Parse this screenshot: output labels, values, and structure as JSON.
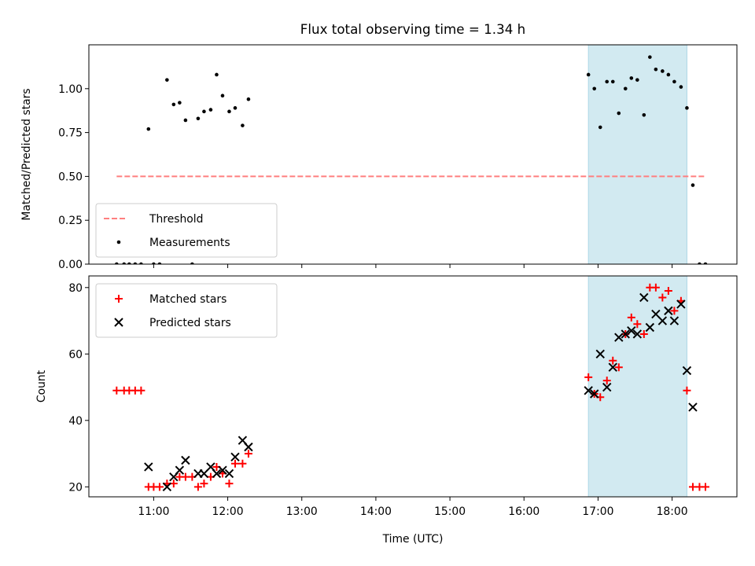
{
  "chart_data": {
    "title": "Flux total observing time = 1.34 h",
    "xlabel": "Time (UTC)",
    "x_ticks": [
      {
        "h": 11,
        "label": "11:00"
      },
      {
        "h": 12,
        "label": "12:00"
      },
      {
        "h": 13,
        "label": "13:00"
      },
      {
        "h": 14,
        "label": "14:00"
      },
      {
        "h": 15,
        "label": "15:00"
      },
      {
        "h": 16,
        "label": "16:00"
      },
      {
        "h": 17,
        "label": "17:00"
      },
      {
        "h": 18,
        "label": "18:00"
      }
    ],
    "xlim": [
      10.125,
      18.875
    ],
    "highlight_span": [
      16.87,
      18.2
    ],
    "highlight_color": "#add8e6",
    "panels": [
      {
        "type": "scatter",
        "ylabel": "Matched/Predicted stars",
        "ylim": [
          0,
          1.25
        ],
        "y_ticks": [
          {
            "v": 0,
            "label": "0.00"
          },
          {
            "v": 0.25,
            "label": "0.25"
          },
          {
            "v": 0.5,
            "label": "0.50"
          },
          {
            "v": 0.75,
            "label": "0.75"
          },
          {
            "v": 1.0,
            "label": "1.00"
          }
        ],
        "threshold": {
          "name": "Threshold",
          "value": 0.5,
          "x": [
            10.5,
            18.45
          ],
          "color": "#ff7f7f"
        },
        "series": [
          {
            "name": "Measurements",
            "color": "#000000",
            "marker": "dot",
            "points": [
              [
                10.5,
                0
              ],
              [
                10.6,
                0
              ],
              [
                10.67,
                0
              ],
              [
                10.75,
                0
              ],
              [
                10.83,
                0
              ],
              [
                10.93,
                0.77
              ],
              [
                11.0,
                0
              ],
              [
                11.08,
                0
              ],
              [
                11.18,
                1.05
              ],
              [
                11.27,
                0.91
              ],
              [
                11.35,
                0.92
              ],
              [
                11.43,
                0.82
              ],
              [
                11.52,
                0
              ],
              [
                11.6,
                0.83
              ],
              [
                11.68,
                0.87
              ],
              [
                11.77,
                0.88
              ],
              [
                11.85,
                1.08
              ],
              [
                11.93,
                0.96
              ],
              [
                12.02,
                0.87
              ],
              [
                12.1,
                0.89
              ],
              [
                12.2,
                0.79
              ],
              [
                12.28,
                0.94
              ],
              [
                16.87,
                1.08
              ],
              [
                16.95,
                1.0
              ],
              [
                17.03,
                0.78
              ],
              [
                17.12,
                1.04
              ],
              [
                17.2,
                1.04
              ],
              [
                17.28,
                0.86
              ],
              [
                17.37,
                1.0
              ],
              [
                17.45,
                1.06
              ],
              [
                17.53,
                1.05
              ],
              [
                17.62,
                0.85
              ],
              [
                17.7,
                1.18
              ],
              [
                17.78,
                1.11
              ],
              [
                17.87,
                1.1
              ],
              [
                17.95,
                1.08
              ],
              [
                18.03,
                1.04
              ],
              [
                18.12,
                1.01
              ],
              [
                18.2,
                0.89
              ],
              [
                18.28,
                0.45
              ],
              [
                18.37,
                0
              ],
              [
                18.45,
                0
              ]
            ]
          }
        ],
        "legend": "lower-left"
      },
      {
        "type": "scatter",
        "ylabel": "Count",
        "ylim": [
          17,
          83.5
        ],
        "y_ticks": [
          {
            "v": 20,
            "label": "20"
          },
          {
            "v": 40,
            "label": "40"
          },
          {
            "v": 60,
            "label": "60"
          },
          {
            "v": 80,
            "label": "80"
          }
        ],
        "series": [
          {
            "name": "Matched stars",
            "color": "#ff0000",
            "marker": "plus",
            "points": [
              [
                10.5,
                49
              ],
              [
                10.6,
                49
              ],
              [
                10.67,
                49
              ],
              [
                10.75,
                49
              ],
              [
                10.83,
                49
              ],
              [
                10.93,
                20
              ],
              [
                11.0,
                20
              ],
              [
                11.08,
                20
              ],
              [
                11.18,
                21
              ],
              [
                11.27,
                21
              ],
              [
                11.35,
                23
              ],
              [
                11.43,
                23
              ],
              [
                11.52,
                23
              ],
              [
                11.6,
                20
              ],
              [
                11.68,
                21
              ],
              [
                11.77,
                23
              ],
              [
                11.85,
                26
              ],
              [
                11.93,
                24
              ],
              [
                12.02,
                21
              ],
              [
                12.1,
                27
              ],
              [
                12.2,
                27
              ],
              [
                12.28,
                30
              ],
              [
                16.87,
                53
              ],
              [
                16.95,
                48
              ],
              [
                17.03,
                47
              ],
              [
                17.12,
                52
              ],
              [
                17.2,
                58
              ],
              [
                17.28,
                56
              ],
              [
                17.37,
                66
              ],
              [
                17.45,
                71
              ],
              [
                17.53,
                69
              ],
              [
                17.62,
                66
              ],
              [
                17.7,
                80
              ],
              [
                17.78,
                80
              ],
              [
                17.87,
                77
              ],
              [
                17.95,
                79
              ],
              [
                18.03,
                73
              ],
              [
                18.12,
                76
              ],
              [
                18.2,
                49
              ],
              [
                18.28,
                20
              ],
              [
                18.37,
                20
              ],
              [
                18.45,
                20
              ]
            ]
          },
          {
            "name": "Predicted stars",
            "color": "#000000",
            "marker": "x",
            "points": [
              [
                10.93,
                26
              ],
              [
                11.18,
                20
              ],
              [
                11.27,
                23
              ],
              [
                11.35,
                25
              ],
              [
                11.43,
                28
              ],
              [
                11.6,
                24
              ],
              [
                11.68,
                24
              ],
              [
                11.77,
                26
              ],
              [
                11.85,
                24
              ],
              [
                11.93,
                25
              ],
              [
                12.02,
                24
              ],
              [
                12.1,
                29
              ],
              [
                12.2,
                34
              ],
              [
                12.28,
                32
              ],
              [
                16.87,
                49
              ],
              [
                16.95,
                48
              ],
              [
                17.03,
                60
              ],
              [
                17.12,
                50
              ],
              [
                17.2,
                56
              ],
              [
                17.28,
                65
              ],
              [
                17.37,
                66
              ],
              [
                17.45,
                67
              ],
              [
                17.53,
                66
              ],
              [
                17.62,
                77
              ],
              [
                17.7,
                68
              ],
              [
                17.78,
                72
              ],
              [
                17.87,
                70
              ],
              [
                17.95,
                73
              ],
              [
                18.03,
                70
              ],
              [
                18.12,
                75
              ],
              [
                18.2,
                55
              ],
              [
                18.28,
                44
              ]
            ]
          }
        ],
        "legend": "upper-left"
      }
    ]
  }
}
